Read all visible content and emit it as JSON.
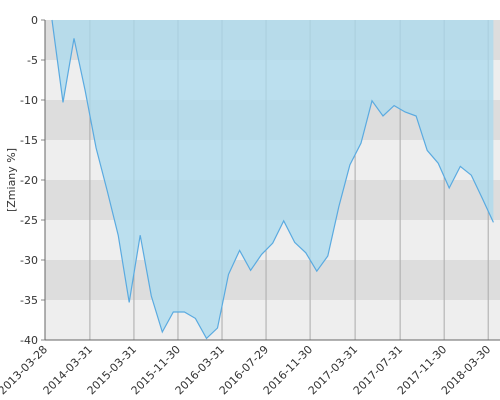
{
  "chart_data": {
    "type": "area",
    "y_label": "[Zmiany %]",
    "values": [
      0,
      -10.3,
      -2.3,
      -8.8,
      -16,
      -21.3,
      -26.9,
      -35.3,
      -26.9,
      -34.5,
      -39,
      -36.5,
      -36.5,
      -37.3,
      -39.8,
      -38.5,
      -31.8,
      -28.8,
      -31.3,
      -29.3,
      -27.9,
      -25.1,
      -27.8,
      -29.1,
      -31.4,
      -29.5,
      -23.3,
      -18.1,
      -15.4,
      -10.1,
      -12,
      -10.7,
      -11.5,
      -12,
      -16.3,
      -17.9,
      -21,
      -18.3,
      -19.4,
      -22.3,
      -25.3
    ],
    "color": "#5aaae0",
    "fill": "#a9d9ee",
    "xlim": [
      -0.63,
      40.6
    ],
    "xticks": [
      {
        "value": -0.63,
        "label": "2013-03-28"
      },
      {
        "value": 3.44,
        "label": "2014-03-31"
      },
      {
        "value": 7.43,
        "label": "2015-03-31"
      },
      {
        "value": 11.42,
        "label": "2015-11-30"
      },
      {
        "value": 15.41,
        "label": "2016-03-31"
      },
      {
        "value": 19.4,
        "label": "2016-07-29"
      },
      {
        "value": 23.39,
        "label": "2016-11-30"
      },
      {
        "value": 27.47,
        "label": "2017-03-31"
      },
      {
        "value": 31.55,
        "label": "2017-07-31"
      },
      {
        "value": 35.54,
        "label": "2017-11-30"
      },
      {
        "value": 39.53,
        "label": "2018-03-30"
      }
    ],
    "ylim": [
      -40,
      0
    ],
    "yticks": [
      0,
      -5,
      -10,
      -15,
      -20,
      -25,
      -30,
      -35,
      -40
    ],
    "grid": true
  }
}
